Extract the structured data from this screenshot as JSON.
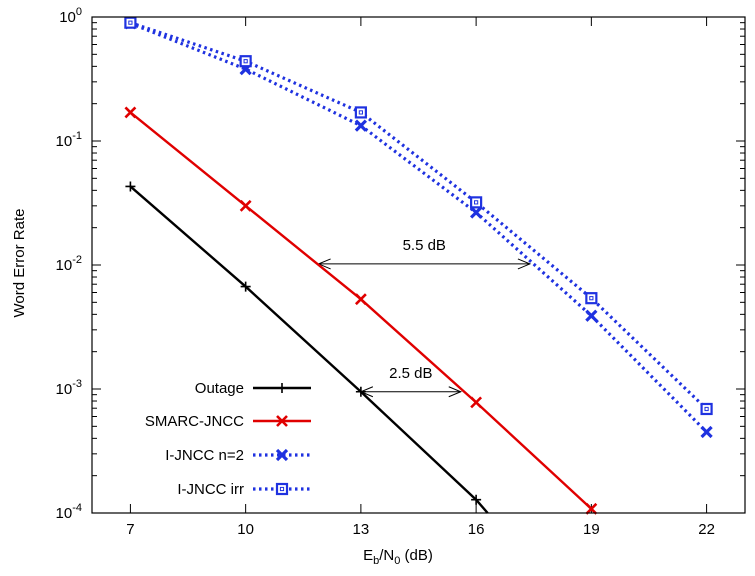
{
  "chart_data": {
    "type": "line",
    "xlabel": {
      "main": "E",
      "sub1": "b",
      "mid": "/N",
      "sub2": "0",
      "tail": " (dB)"
    },
    "ylabel": "Word Error Rate",
    "xlim": [
      6,
      23
    ],
    "ylim": [
      0.0001,
      1
    ],
    "yscale": "log",
    "grid": false,
    "legend_position": "bottom-left",
    "xticks": [
      7,
      10,
      13,
      16,
      19,
      22
    ],
    "yticks": [
      {
        "value": 1,
        "base": "10",
        "exp": "0"
      },
      {
        "value": 0.1,
        "base": "10",
        "exp": "-1"
      },
      {
        "value": 0.01,
        "base": "10",
        "exp": "-2"
      },
      {
        "value": 0.001,
        "base": "10",
        "exp": "-3"
      },
      {
        "value": 0.0001,
        "base": "10",
        "exp": "-4"
      }
    ],
    "series": [
      {
        "name": "Outage",
        "color": "#000000",
        "style": "solid",
        "marker": "plus",
        "x": [
          7,
          10,
          13,
          16,
          16.3
        ],
        "y": [
          0.043,
          0.0067,
          0.00095,
          0.000128,
          0.0001
        ]
      },
      {
        "name": "SMARC-JNCC",
        "color": "#e00000",
        "style": "solid",
        "marker": "cross",
        "x": [
          7,
          10,
          13,
          16,
          19
        ],
        "y": [
          0.17,
          0.03,
          0.0053,
          0.00078,
          0.000108
        ]
      },
      {
        "name": "I-JNCC n=2",
        "color": "#1f32e0",
        "style": "dotted",
        "marker": "filled-x",
        "x": [
          7,
          10,
          13,
          16,
          19,
          22
        ],
        "y": [
          0.89,
          0.38,
          0.133,
          0.0265,
          0.0039,
          0.00045
        ]
      },
      {
        "name": "I-JNCC irr",
        "color": "#1f32e0",
        "style": "dotted",
        "marker": "square",
        "x": [
          7,
          10,
          13,
          16,
          19,
          22
        ],
        "y": [
          0.9,
          0.44,
          0.17,
          0.032,
          0.0054,
          0.00069
        ]
      }
    ],
    "annotations": [
      {
        "text": "5.5 dB",
        "x1": 11.9,
        "x2": 17.4,
        "y": 0.0102
      },
      {
        "text": "2.5 dB",
        "x1": 13,
        "x2": 15.6,
        "y": 0.00095
      }
    ]
  }
}
